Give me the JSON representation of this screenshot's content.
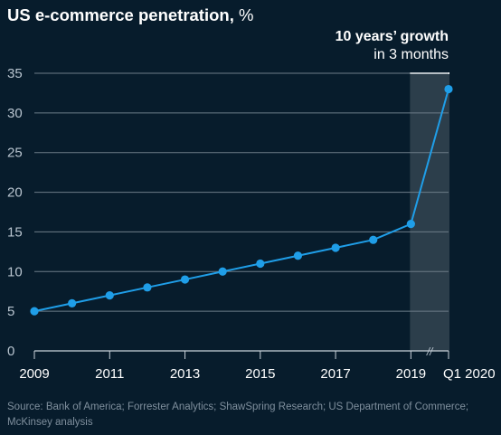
{
  "title": {
    "main": "US e-commerce penetration,",
    "unit": "%"
  },
  "annotation": {
    "strong": "10 years’ growth",
    "sub": "in 3 months"
  },
  "source": "Source: Bank of America; Forrester Analytics; ShawSpring Research; US Department of Commerce; McKinsey analysis",
  "colors": {
    "background": "#071c2c",
    "line": "#1f9ee8",
    "highlight": "#2c3e4b",
    "grid": "#6d7c88"
  },
  "chart_data": {
    "type": "line",
    "x": [
      "2009",
      "2010",
      "2011",
      "2012",
      "2013",
      "2014",
      "2015",
      "2016",
      "2017",
      "2018",
      "2019",
      "Q1 2020"
    ],
    "series": [
      {
        "values": [
          5,
          6,
          7,
          8,
          9,
          10,
          11,
          12,
          13,
          14,
          16,
          33
        ]
      }
    ],
    "x_tick_labels": [
      "2009",
      "2011",
      "2013",
      "2015",
      "2017",
      "2019",
      "Q1 2020"
    ],
    "y_ticks": [
      0,
      5,
      10,
      15,
      20,
      25,
      30,
      35
    ],
    "ylim": [
      0,
      35
    ],
    "grid": true,
    "highlight_range": [
      "2019",
      "Q1 2020"
    ],
    "axis_break_mark": "//"
  }
}
